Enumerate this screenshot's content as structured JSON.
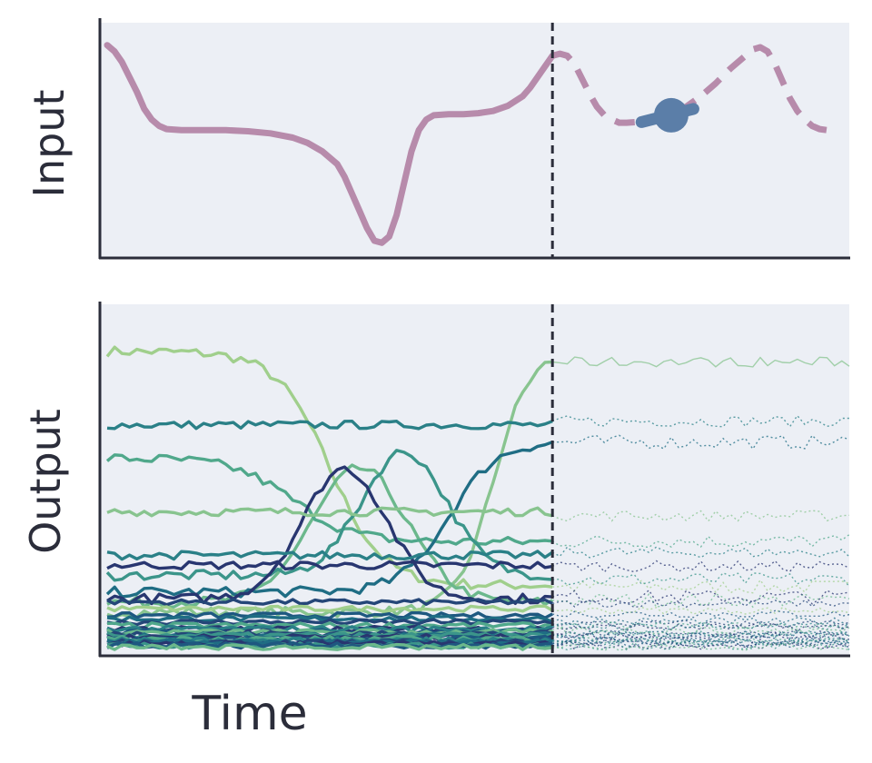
{
  "colors": {
    "panel_bg": "#eceff5",
    "axis": "#2b2d3a",
    "input_line": "#b78bab",
    "marker": "#5b7ea8",
    "divider": "#2b2d3a",
    "palette": [
      "#a0cf8c",
      "#88c48f",
      "#6bb88c",
      "#50a88b",
      "#3b958a",
      "#2a8087",
      "#1f6d84",
      "#1e5880",
      "#244678",
      "#283670"
    ]
  },
  "labels": {
    "input": "Input",
    "output": "Output",
    "time": "Time"
  },
  "chart_data": [
    {
      "type": "line",
      "panel": "input",
      "xlabel": "",
      "ylabel": "Input",
      "xlim": [
        0,
        100
      ],
      "ylim": [
        0,
        1
      ],
      "grid": false,
      "divider_x": 60,
      "series": [
        {
          "style": "solid",
          "points": [
            [
              0,
              0.95
            ],
            [
              1,
              0.92
            ],
            [
              2,
              0.87
            ],
            [
              3,
              0.8
            ],
            [
              4,
              0.73
            ],
            [
              5,
              0.65
            ],
            [
              6,
              0.6
            ],
            [
              7,
              0.57
            ],
            [
              8,
              0.555
            ],
            [
              10,
              0.55
            ],
            [
              13,
              0.55
            ],
            [
              16,
              0.55
            ],
            [
              19,
              0.545
            ],
            [
              22,
              0.535
            ],
            [
              25,
              0.515
            ],
            [
              27,
              0.49
            ],
            [
              29,
              0.45
            ],
            [
              31,
              0.39
            ],
            [
              32,
              0.33
            ],
            [
              33,
              0.25
            ],
            [
              34,
              0.17
            ],
            [
              35,
              0.09
            ],
            [
              36,
              0.03
            ],
            [
              37,
              0.02
            ],
            [
              38,
              0.05
            ],
            [
              39,
              0.15
            ],
            [
              40,
              0.3
            ],
            [
              41,
              0.45
            ],
            [
              42,
              0.55
            ],
            [
              43,
              0.6
            ],
            [
              44,
              0.62
            ],
            [
              46,
              0.625
            ],
            [
              48,
              0.625
            ],
            [
              50,
              0.63
            ],
            [
              52,
              0.64
            ],
            [
              54,
              0.665
            ],
            [
              56,
              0.71
            ],
            [
              57,
              0.75
            ],
            [
              58,
              0.8
            ],
            [
              59,
              0.85
            ],
            [
              60,
              0.9
            ]
          ]
        },
        {
          "style": "dashed",
          "points": [
            [
              60,
              0.9
            ],
            [
              61,
              0.91
            ],
            [
              62,
              0.9
            ],
            [
              63,
              0.86
            ],
            [
              64,
              0.79
            ],
            [
              65,
              0.72
            ],
            [
              66,
              0.66
            ],
            [
              67,
              0.62
            ],
            [
              68,
              0.6
            ],
            [
              69,
              0.585
            ],
            [
              70,
              0.585
            ],
            [
              72,
              0.59
            ],
            [
              74,
              0.6
            ],
            [
              76,
              0.62
            ],
            [
              78,
              0.66
            ],
            [
              80,
              0.71
            ],
            [
              82,
              0.77
            ],
            [
              84,
              0.84
            ],
            [
              86,
              0.9
            ],
            [
              87,
              0.93
            ],
            [
              88,
              0.94
            ],
            [
              89,
              0.92
            ],
            [
              90,
              0.86
            ],
            [
              91,
              0.78
            ],
            [
              92,
              0.7
            ],
            [
              93,
              0.64
            ],
            [
              94,
              0.6
            ],
            [
              95,
              0.57
            ],
            [
              96,
              0.555
            ],
            [
              97,
              0.55
            ]
          ]
        }
      ],
      "marker": {
        "x": 76,
        "y": 0.62,
        "handle_from": [
          72,
          0.588
        ],
        "handle_to": [
          79,
          0.65
        ]
      }
    },
    {
      "type": "line",
      "panel": "output",
      "xlabel": "Time",
      "ylabel": "Output",
      "xlim": [
        0,
        100
      ],
      "ylim": [
        0,
        1
      ],
      "grid": false,
      "divider_x": 60,
      "observed_end": 60,
      "forecast_end": 100,
      "series": [
        {
          "kind": "fall",
          "start": 0.9,
          "end": 0.2,
          "center": 30,
          "width": 9,
          "color_index": 0
        },
        {
          "kind": "rise",
          "start": 0.12,
          "end": 0.9,
          "center": 52,
          "width": 6,
          "color_index": 1
        },
        {
          "kind": "bump",
          "base": 0.15,
          "peak": 0.55,
          "center": 34,
          "width": 9,
          "color_index": 2
        },
        {
          "kind": "flat",
          "level": 0.68,
          "color_index": 5
        },
        {
          "kind": "fall",
          "start": 0.58,
          "end": 0.33,
          "center": 25,
          "width": 10,
          "color_index": 3
        },
        {
          "kind": "rise",
          "start": 0.18,
          "end": 0.63,
          "center": 46,
          "width": 8,
          "color_index": 6
        },
        {
          "kind": "bump",
          "base": 0.23,
          "peak": 0.6,
          "center": 40,
          "width": 8,
          "color_index": 4
        },
        {
          "kind": "bump",
          "base": 0.16,
          "peak": 0.55,
          "center": 32,
          "width": 8,
          "color_index": 9
        },
        {
          "kind": "flat",
          "level": 0.42,
          "color_index": 1
        },
        {
          "kind": "flat",
          "level": 0.26,
          "color_index": 9
        },
        {
          "kind": "flat",
          "level": 0.29,
          "color_index": 5
        },
        {
          "kind": "flat",
          "level": 0.15,
          "color_index": 8
        },
        {
          "kind": "flat",
          "level": 0.13,
          "color_index": 0
        },
        {
          "kind": "flat",
          "level": 0.11,
          "color_index": 7
        },
        {
          "kind": "flat",
          "level": 0.1,
          "color_index": 6
        },
        {
          "kind": "flat",
          "level": 0.09,
          "color_index": 8
        },
        {
          "kind": "flat",
          "level": 0.08,
          "color_index": 3
        },
        {
          "kind": "flat",
          "level": 0.07,
          "color_index": 9
        },
        {
          "kind": "flat",
          "level": 0.07,
          "color_index": 5
        },
        {
          "kind": "flat",
          "level": 0.06,
          "color_index": 7
        },
        {
          "kind": "flat",
          "level": 0.06,
          "color_index": 2
        },
        {
          "kind": "flat",
          "level": 0.055,
          "color_index": 8
        },
        {
          "kind": "flat",
          "level": 0.05,
          "color_index": 6
        },
        {
          "kind": "flat",
          "level": 0.05,
          "color_index": 4
        },
        {
          "kind": "flat",
          "level": 0.045,
          "color_index": 9
        },
        {
          "kind": "flat",
          "level": 0.04,
          "color_index": 7
        },
        {
          "kind": "flat",
          "level": 0.04,
          "color_index": 3
        },
        {
          "kind": "flat",
          "level": 0.035,
          "color_index": 5
        },
        {
          "kind": "flat",
          "level": 0.03,
          "color_index": 8
        },
        {
          "kind": "flat",
          "level": 0.03,
          "color_index": 6
        },
        {
          "kind": "flat",
          "level": 0.025,
          "color_index": 9
        },
        {
          "kind": "flat",
          "level": 0.02,
          "color_index": 4
        },
        {
          "kind": "flat",
          "level": 0.02,
          "color_index": 7
        },
        {
          "kind": "flat",
          "level": 0.015,
          "color_index": 2
        }
      ]
    }
  ]
}
